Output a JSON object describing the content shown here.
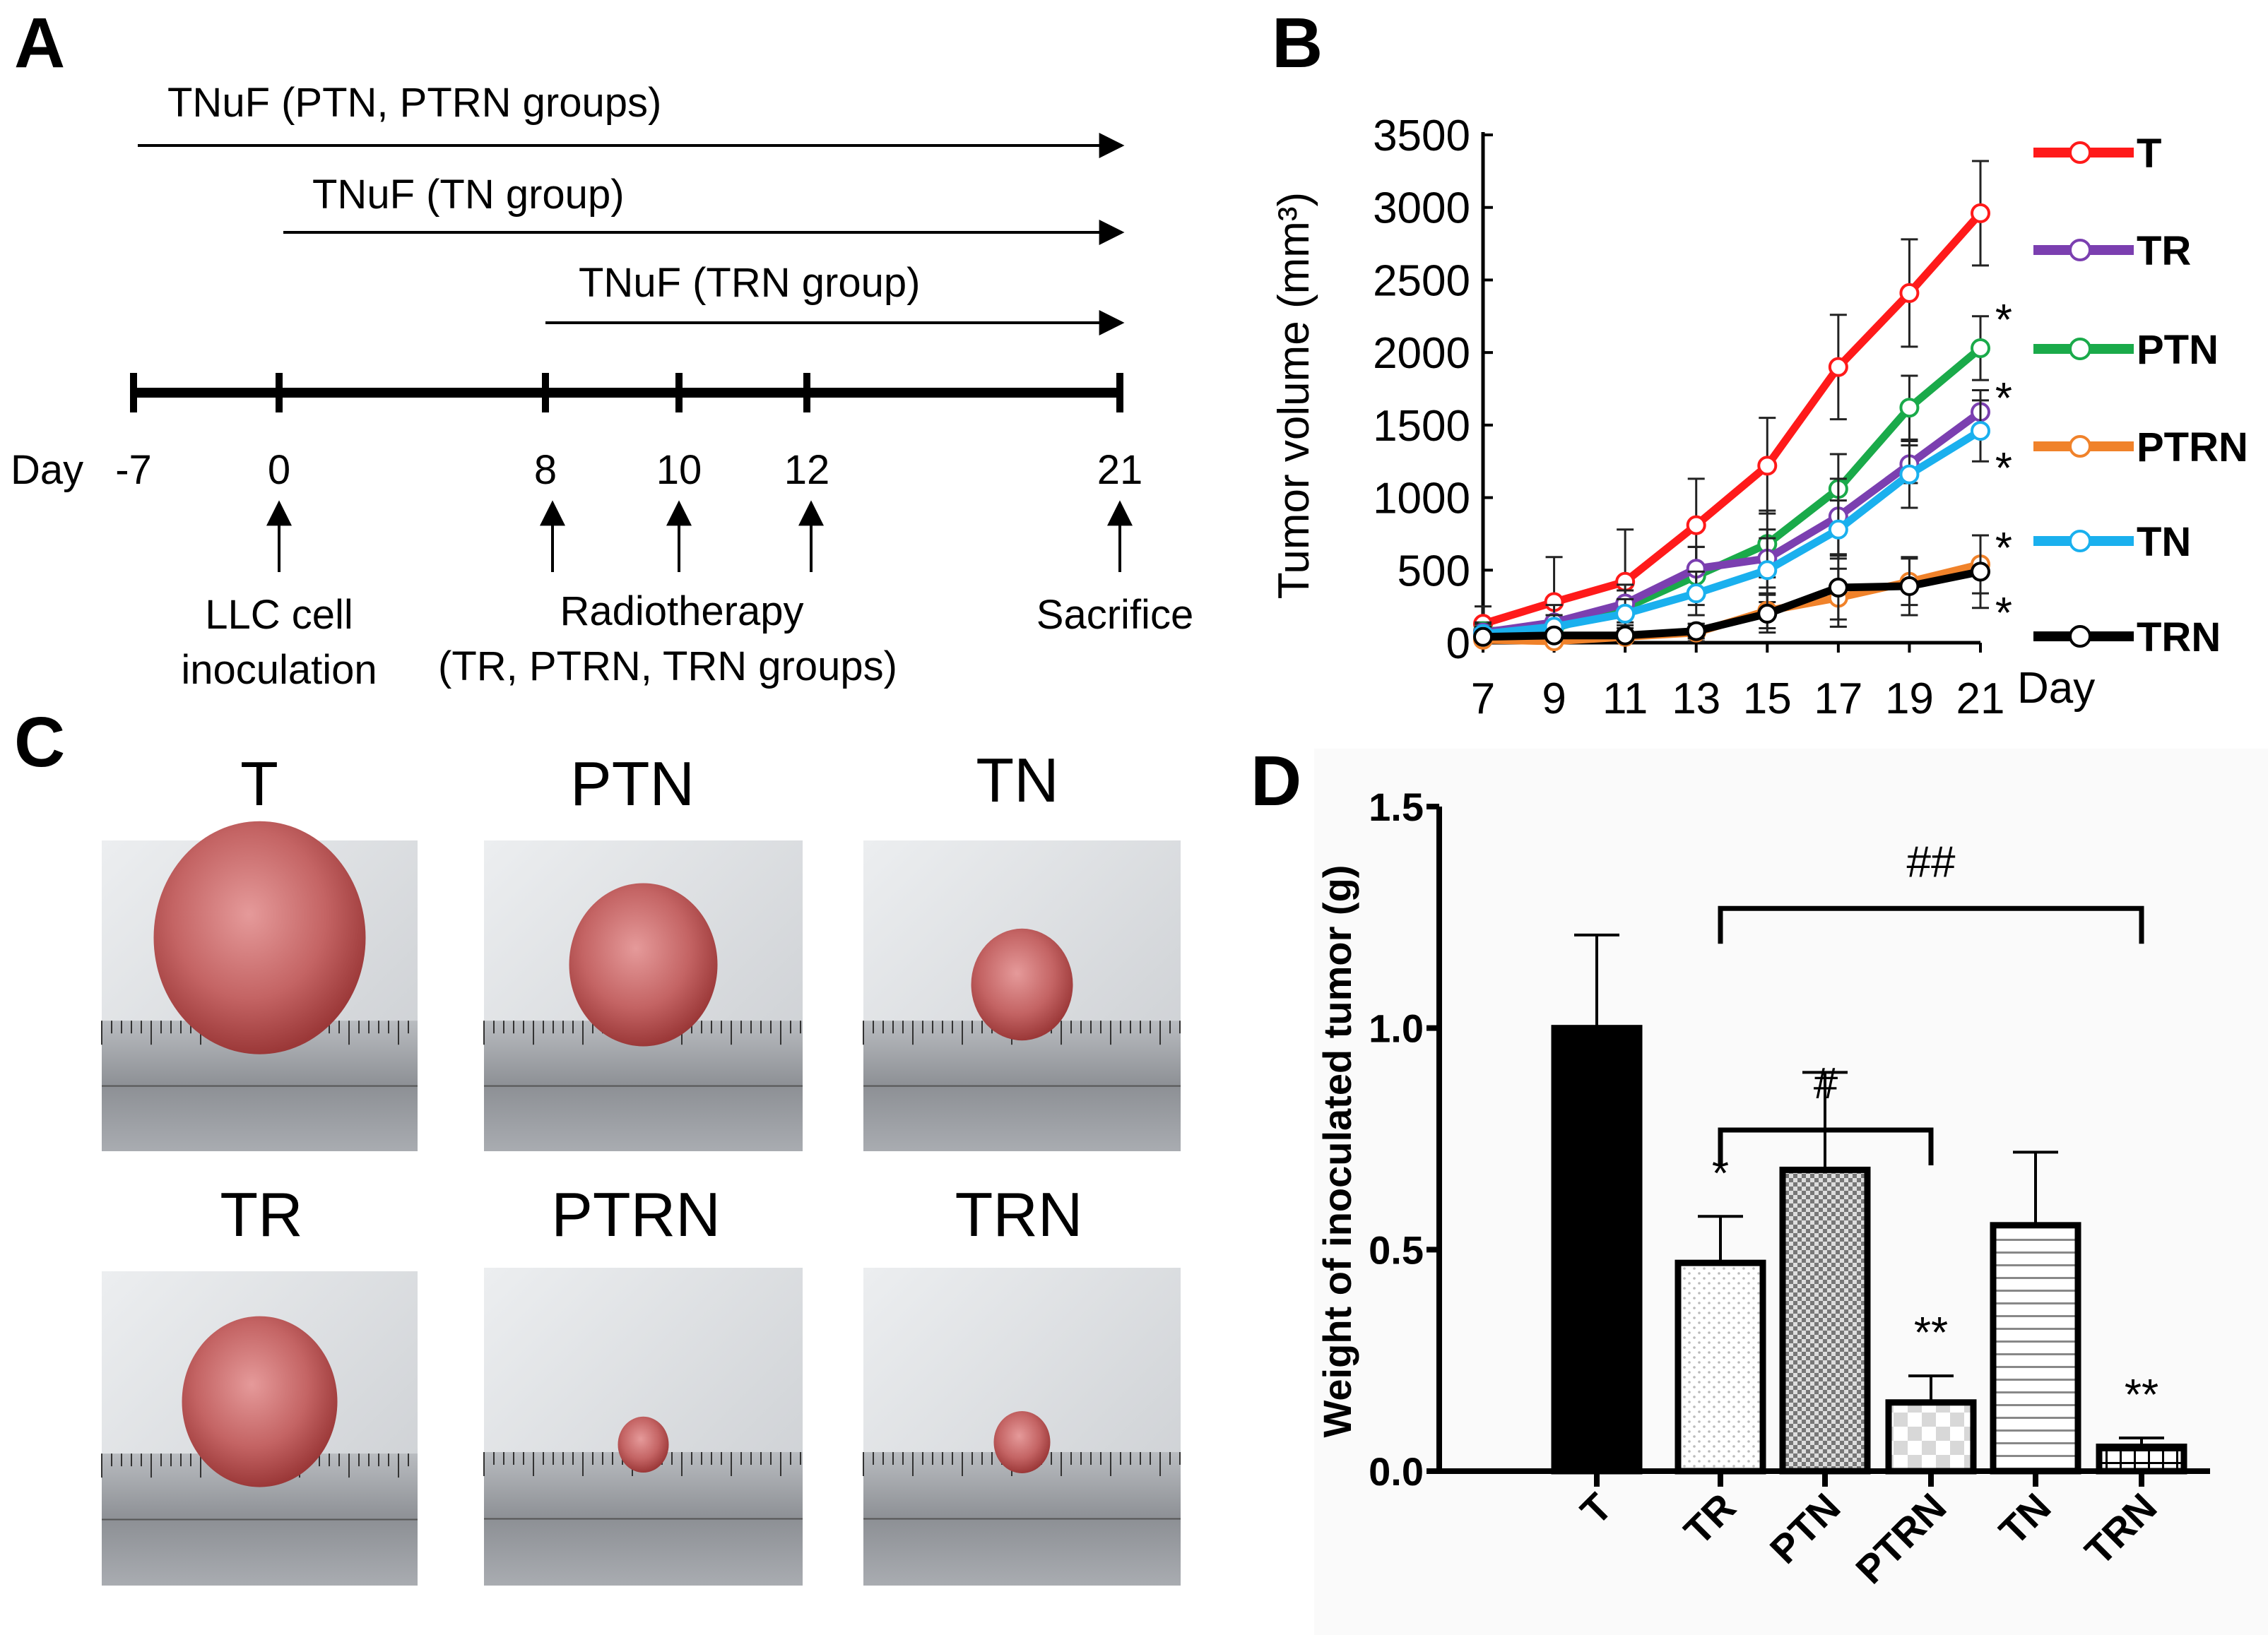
{
  "panels": {
    "a": "A",
    "b": "B",
    "c": "C",
    "d": "D"
  },
  "panel_a": {
    "arrows": [
      {
        "label": "TNuF (PTN, PTRN groups)",
        "start_day": -7,
        "end_day": 21
      },
      {
        "label": "TNuF (TN group)",
        "start_day": 0,
        "end_day": 21
      },
      {
        "label": "TNuF (TRN group)",
        "start_day": 8,
        "end_day": 21
      }
    ],
    "day_label": "Day",
    "days": [
      "-7",
      "0",
      "8",
      "10",
      "12",
      "21"
    ],
    "events": [
      {
        "line1": "LLC cell",
        "line2": "inoculation"
      },
      {
        "line1": "Radiotherapy",
        "line2": "(TR, PTRN, TRN groups)"
      },
      {
        "line1": "Sacrifice",
        "line2": ""
      }
    ]
  },
  "panel_c": {
    "titles": [
      "T",
      "PTN",
      "TN",
      "TR",
      "PTRN",
      "TRN"
    ]
  },
  "chart_data": [
    {
      "type": "line",
      "ylabel": "Tumor volume (mm³)",
      "xlabel": "Day",
      "x": [
        7,
        9,
        11,
        13,
        15,
        17,
        19,
        21
      ],
      "xticks": [
        "7",
        "9",
        "11",
        "13",
        "15",
        "17",
        "19",
        "21"
      ],
      "yticks": [
        "0",
        "500",
        "1000",
        "1500",
        "2000",
        "2500",
        "3000",
        "3500"
      ],
      "ylim": [
        0,
        3500
      ],
      "legend_position": "right",
      "series": [
        {
          "name": "T",
          "color": "#ff1a1a",
          "values": [
            130,
            280,
            420,
            810,
            1220,
            1900,
            2410,
            2960
          ],
          "errors": [
            120,
            310,
            360,
            320,
            330,
            360,
            370,
            360
          ]
        },
        {
          "name": "TR",
          "color": "#7b3fb0",
          "values": [
            70,
            140,
            270,
            510,
            580,
            870,
            1230,
            1590
          ],
          "errors": [
            60,
            120,
            130,
            150,
            200,
            260,
            130,
            150
          ]
        },
        {
          "name": "PTN",
          "color": "#1aaa4a",
          "values": [
            80,
            100,
            240,
            460,
            680,
            1060,
            1620,
            2030
          ],
          "errors": [
            60,
            90,
            120,
            200,
            230,
            240,
            220,
            220
          ]
        },
        {
          "name": "PTRN",
          "color": "#f0822a",
          "values": [
            20,
            10,
            40,
            70,
            220,
            310,
            420,
            540
          ],
          "errors": [
            20,
            20,
            30,
            60,
            120,
            200,
            160,
            200
          ]
        },
        {
          "name": "TN",
          "color": "#1ab0ee",
          "values": [
            60,
            110,
            200,
            340,
            500,
            780,
            1160,
            1460
          ],
          "errors": [
            50,
            80,
            100,
            150,
            220,
            200,
            230,
            210
          ]
        },
        {
          "name": "TRN",
          "color": "#000000",
          "values": [
            40,
            50,
            50,
            80,
            200,
            380,
            390,
            490
          ],
          "errors": [
            30,
            30,
            30,
            50,
            130,
            220,
            200,
            250
          ]
        }
      ],
      "annotations": [
        {
          "text": "*",
          "series": "PTN"
        },
        {
          "text": "*",
          "series": "TR"
        },
        {
          "text": "*",
          "series": "TN"
        },
        {
          "text": "*",
          "series": "PTRN"
        },
        {
          "text": "*",
          "series": "TRN"
        }
      ]
    },
    {
      "type": "bar",
      "ylabel": "Weight of inoculated tumor (g)",
      "categories": [
        "T",
        "TR",
        "PTN",
        "PTRN",
        "TN",
        "TRN"
      ],
      "values": [
        1.0,
        0.47,
        0.68,
        0.155,
        0.555,
        0.055
      ],
      "errors": [
        0.21,
        0.105,
        0.22,
        0.06,
        0.165,
        0.02
      ],
      "significance": [
        "",
        "*",
        "",
        "**",
        "",
        "**"
      ],
      "yticks": [
        "0.0",
        "0.5",
        "1.0",
        "1.5"
      ],
      "ylim": [
        0,
        1.5
      ],
      "brackets": [
        {
          "from": "TR",
          "to": "PTRN",
          "label": "#",
          "level": 0.77
        },
        {
          "from": "TR",
          "to": "TRN",
          "label": "##",
          "level": 1.27
        }
      ]
    }
  ]
}
